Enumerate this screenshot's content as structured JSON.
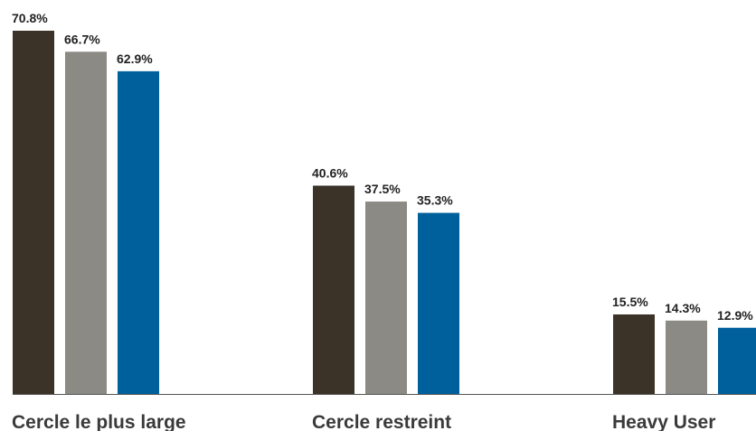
{
  "chart_data": {
    "type": "bar",
    "categories": [
      "Cercle le plus large",
      "Cercle restreint",
      "Heavy User"
    ],
    "series": [
      {
        "color": "#3b3328",
        "values": [
          70.8,
          40.6,
          15.5
        ],
        "labels": [
          "70.8%",
          "40.6%",
          "15.5%"
        ]
      },
      {
        "color": "#8c8a84",
        "values": [
          66.7,
          37.5,
          14.3
        ],
        "labels": [
          "66.7%",
          "37.5%",
          "14.3%"
        ]
      },
      {
        "color": "#00609c",
        "values": [
          62.9,
          35.3,
          12.9
        ],
        "labels": [
          "62.9%",
          "35.3%",
          "12.9%"
        ]
      }
    ],
    "ylim": [
      0,
      70.8
    ],
    "grid": false,
    "legend": "none"
  }
}
